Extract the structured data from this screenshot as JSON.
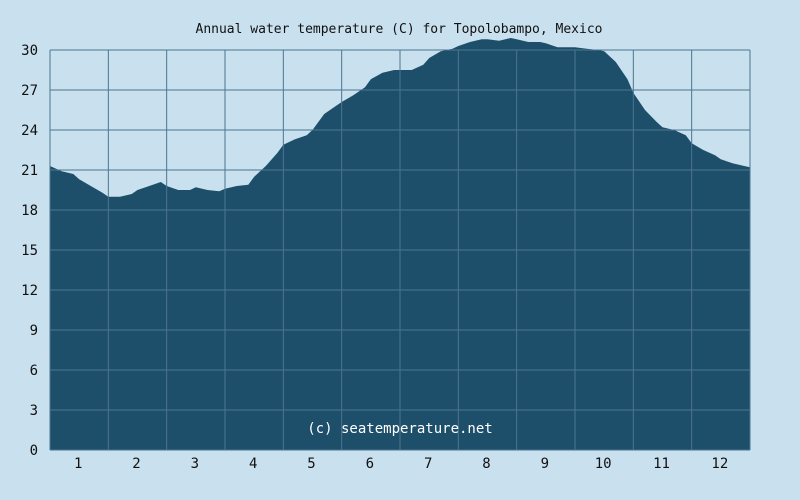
{
  "chart_data": {
    "type": "area",
    "title": "Annual water temperature (C) for Topolobampo, Mexico",
    "xlabel": "",
    "ylabel": "",
    "credit": "(c) seatemperature.net",
    "x_ticks": [
      "1",
      "2",
      "3",
      "4",
      "5",
      "6",
      "7",
      "8",
      "9",
      "10",
      "11",
      "12"
    ],
    "y_ticks": [
      "0",
      "3",
      "6",
      "9",
      "12",
      "15",
      "18",
      "21",
      "24",
      "27",
      "30"
    ],
    "ylim": [
      0,
      30
    ],
    "xlim": [
      0.5,
      12.5
    ],
    "grid": true,
    "colors": {
      "background": "#c9e1ee",
      "fill": "#1e4f6a",
      "grid": "#4c7490"
    },
    "x": [
      0.5,
      0.7,
      0.9,
      1.0,
      1.2,
      1.4,
      1.5,
      1.7,
      1.9,
      2.0,
      2.2,
      2.4,
      2.5,
      2.7,
      2.9,
      3.0,
      3.2,
      3.4,
      3.5,
      3.7,
      3.9,
      4.0,
      4.2,
      4.4,
      4.5,
      4.7,
      4.9,
      5.0,
      5.2,
      5.4,
      5.5,
      5.7,
      5.9,
      6.0,
      6.2,
      6.4,
      6.5,
      6.7,
      6.9,
      7.0,
      7.2,
      7.4,
      7.5,
      7.7,
      7.9,
      8.0,
      8.2,
      8.4,
      8.5,
      8.7,
      8.9,
      9.0,
      9.2,
      9.4,
      9.5,
      9.7,
      9.9,
      10.0,
      10.2,
      10.4,
      10.5,
      10.7,
      10.9,
      11.0,
      11.2,
      11.4,
      11.5,
      11.7,
      11.9,
      12.0,
      12.2,
      12.4,
      12.5
    ],
    "values": [
      21.3,
      20.9,
      20.7,
      20.3,
      19.8,
      19.3,
      19.0,
      19.0,
      19.2,
      19.5,
      19.8,
      20.1,
      19.8,
      19.5,
      19.5,
      19.7,
      19.5,
      19.4,
      19.6,
      19.8,
      19.9,
      20.5,
      21.3,
      22.3,
      22.9,
      23.3,
      23.6,
      24.0,
      25.2,
      25.8,
      26.1,
      26.6,
      27.2,
      27.8,
      28.3,
      28.5,
      28.5,
      28.5,
      28.9,
      29.4,
      29.9,
      30.1,
      30.3,
      30.6,
      30.8,
      30.8,
      30.7,
      30.9,
      30.8,
      30.6,
      30.6,
      30.5,
      30.2,
      30.2,
      30.2,
      30.1,
      30.0,
      29.9,
      29.1,
      27.8,
      26.8,
      25.5,
      24.6,
      24.2,
      24.0,
      23.6,
      23.0,
      22.5,
      22.1,
      21.8,
      21.5,
      21.3,
      21.2
    ]
  }
}
